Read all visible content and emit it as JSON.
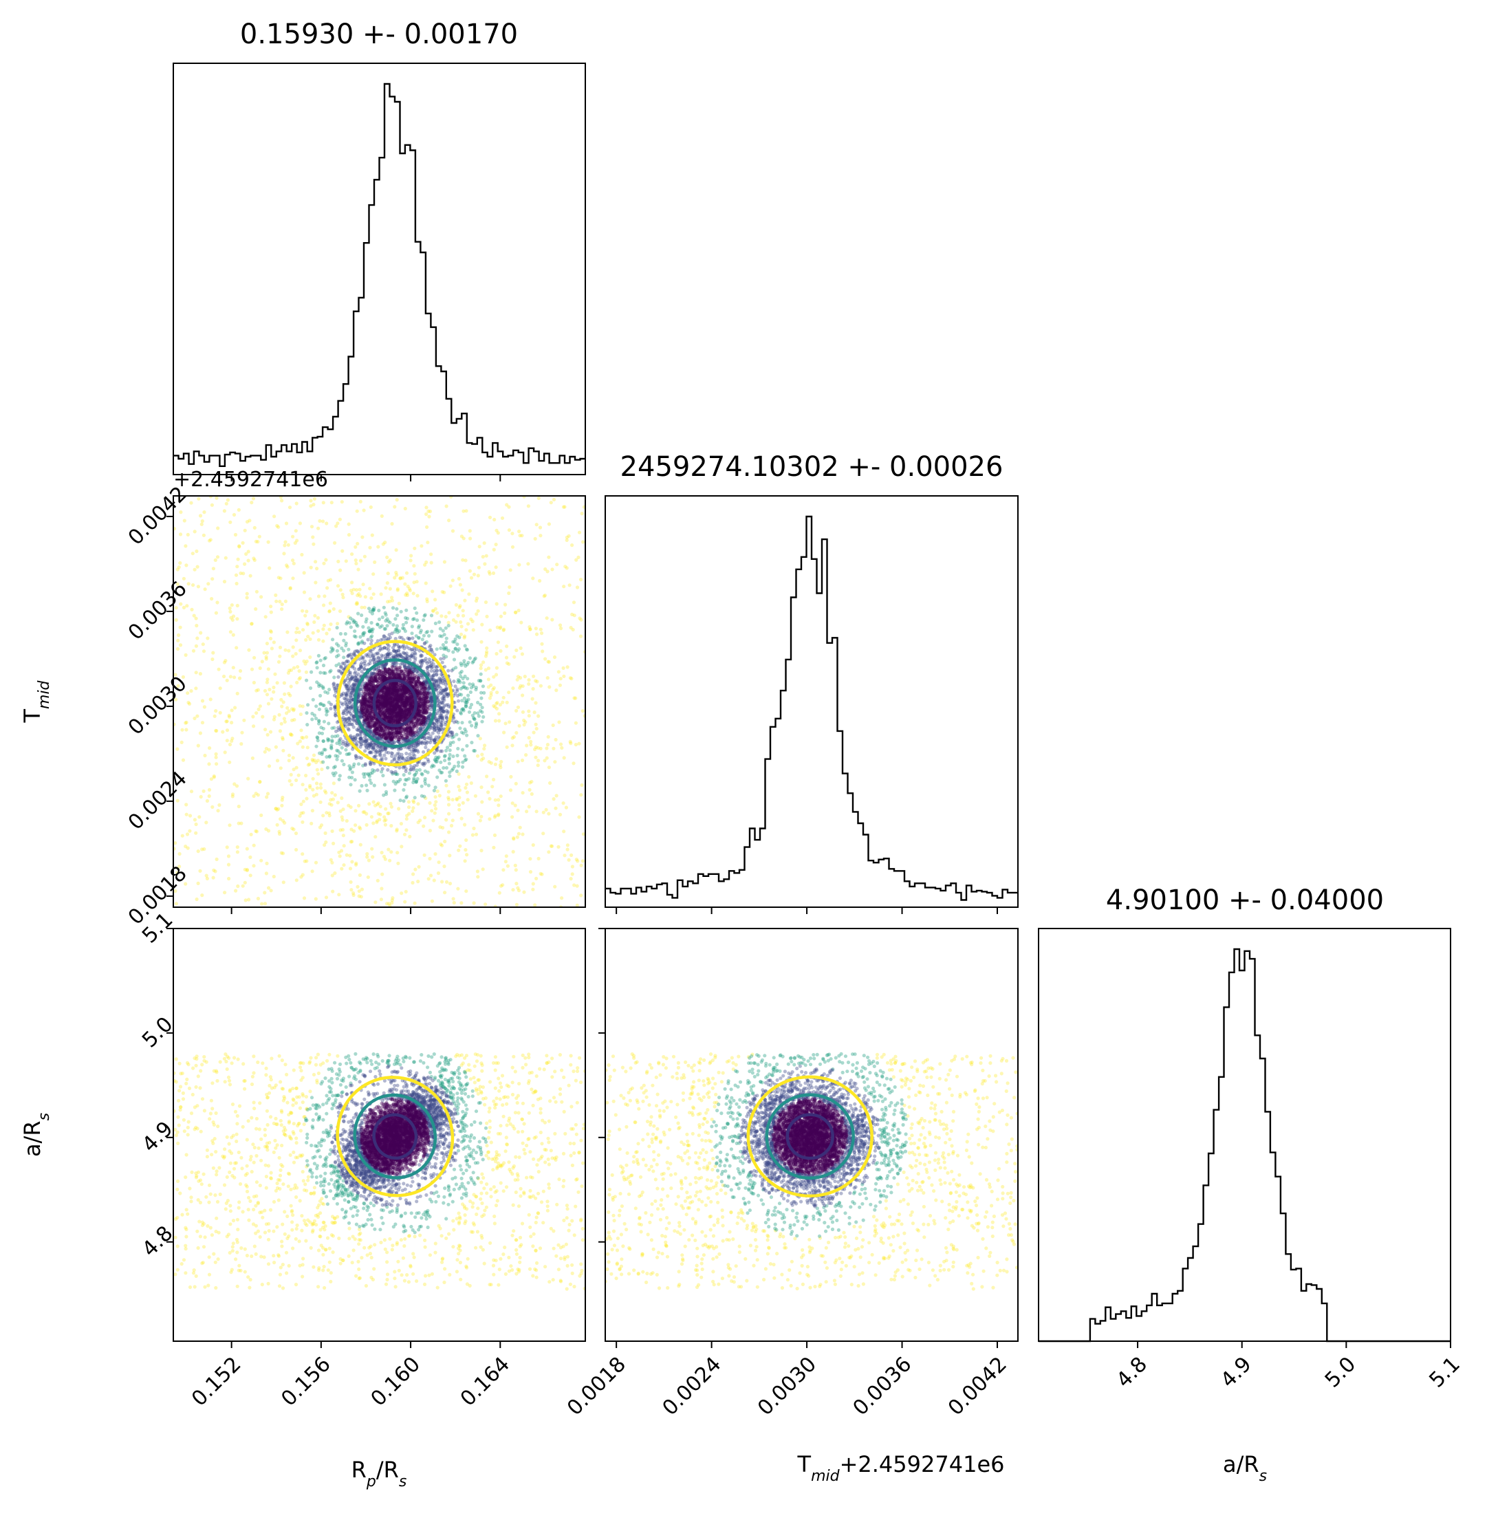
{
  "chart_data": {
    "type": "scatter",
    "kind": "corner-plot",
    "parameters": [
      {
        "label": "R",
        "label_sub": "p",
        "label_tail": "/R",
        "label_sub2": "s",
        "range": [
          0.1494,
          0.1678
        ],
        "ticks": [
          0.152,
          0.156,
          0.16,
          0.164
        ],
        "tick_labels": [
          "0.152",
          "0.156",
          "0.160",
          "0.164"
        ],
        "mean": 0.1593,
        "sd": 0.0017
      },
      {
        "label": "T",
        "label_sub": "mid",
        "label_tail": "",
        "label_sub2": "",
        "offset_label": "+2.4592741e6",
        "range": [
          0.00173,
          0.00433
        ],
        "ticks": [
          0.0018,
          0.0024,
          0.003,
          0.0036,
          0.0042
        ],
        "tick_labels": [
          "0.0018",
          "0.0024",
          "0.0030",
          "0.0036",
          "0.0042"
        ],
        "mean": 0.00302,
        "sd": 0.00026
      },
      {
        "label": "a/R",
        "label_sub": "s",
        "label_tail": "",
        "label_sub2": "",
        "range": [
          4.705,
          5.1
        ],
        "ticks": [
          4.8,
          4.9,
          5.0,
          5.1
        ],
        "tick_labels": [
          "4.8",
          "4.9",
          "5.0",
          "5.1"
        ],
        "mean": 4.901,
        "sd": 0.04
      }
    ],
    "titles": [
      "0.15930 +- 0.00170",
      "2459274.10302 +- 0.00026",
      "4.90100 +- 0.04000"
    ],
    "offset_text": "+2.4592741e6",
    "contour_colors": [
      "#3b2d77",
      "#24918c",
      "#fde725"
    ],
    "point_colors": {
      "dense": "#440154",
      "mid": "#3e4a89",
      "teal": "#26a184",
      "sparse": "#fde725"
    },
    "uniform_ranges": {
      "a_over_Rs": [
        4.755,
        4.98
      ]
    },
    "histogram_a_over_Rs_peak": 4.9,
    "grid": false
  }
}
